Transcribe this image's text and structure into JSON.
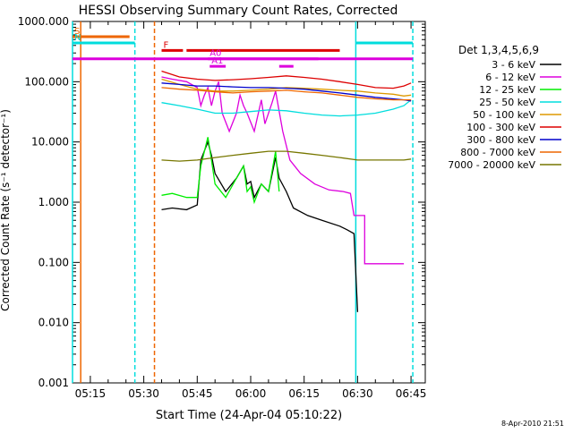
{
  "footer": {
    "generated": "8-Apr-2010 21:51"
  },
  "chart_data": {
    "type": "line",
    "title": "HESSI Observing Summary Count Rates, Corrected",
    "xlabel": "Start Time (24-Apr-04 05:10:22)",
    "ylabel": "Corrected Count Rate (s⁻¹ detector⁻¹)",
    "x_ticks": [
      "05:15",
      "05:30",
      "05:45",
      "06:00",
      "06:15",
      "06:30",
      "06:45"
    ],
    "x_tick_minutes": [
      5,
      20,
      35,
      50,
      65,
      80,
      95
    ],
    "xlim_minutes": [
      0,
      99
    ],
    "y_scale": "log",
    "ylim": [
      0.001,
      1000
    ],
    "y_ticks": [
      "0.001",
      "0.010",
      "0.100",
      "1.000",
      "10.000",
      "100.000",
      "1000.000"
    ],
    "legend": {
      "title": "Det 1,3,4,5,6,9",
      "placement": "right",
      "entries": [
        "3 - 6 keV",
        "6 - 12 keV",
        "12 - 25 keV",
        "25 - 50 keV",
        "50 - 100 keV",
        "100 - 300 keV",
        "300 - 800 keV",
        "800 - 7000 keV",
        "7000 - 20000 keV"
      ]
    },
    "series": [
      {
        "name": "3 - 6 keV",
        "color": "#000000",
        "points": [
          [
            25,
            0.75
          ],
          [
            28,
            0.8
          ],
          [
            32,
            0.75
          ],
          [
            35,
            0.9
          ],
          [
            36,
            5
          ],
          [
            38,
            10
          ],
          [
            39,
            6
          ],
          [
            40,
            3
          ],
          [
            43,
            1.5
          ],
          [
            46,
            2.5
          ],
          [
            48,
            4
          ],
          [
            49,
            2
          ],
          [
            50,
            2.2
          ],
          [
            51,
            1.2
          ],
          [
            53,
            2
          ],
          [
            55,
            1.5
          ],
          [
            57,
            5.5
          ],
          [
            58,
            2.5
          ],
          [
            60,
            1.5
          ],
          [
            62,
            0.8
          ],
          [
            66,
            0.6
          ],
          [
            70,
            0.5
          ],
          [
            75,
            0.4
          ],
          [
            77,
            0.35
          ],
          [
            79,
            0.3
          ],
          [
            80,
            0.015
          ]
        ]
      },
      {
        "name": "6 - 12 keV",
        "color": "#dd00dd",
        "points": [
          [
            25,
            120
          ],
          [
            28,
            110
          ],
          [
            32,
            100
          ],
          [
            35,
            80
          ],
          [
            36,
            40
          ],
          [
            37,
            60
          ],
          [
            38,
            80
          ],
          [
            39,
            40
          ],
          [
            40,
            70
          ],
          [
            41,
            100
          ],
          [
            42,
            30
          ],
          [
            44,
            15
          ],
          [
            46,
            30
          ],
          [
            47,
            60
          ],
          [
            48,
            40
          ],
          [
            49,
            30
          ],
          [
            51,
            15
          ],
          [
            53,
            50
          ],
          [
            54,
            20
          ],
          [
            56,
            45
          ],
          [
            57,
            70
          ],
          [
            59,
            15
          ],
          [
            61,
            5
          ],
          [
            64,
            3
          ],
          [
            68,
            2
          ],
          [
            72,
            1.6
          ],
          [
            76,
            1.5
          ],
          [
            78,
            1.4
          ],
          [
            79,
            0.6
          ],
          [
            82,
            0.6
          ],
          [
            82,
            0.095
          ],
          [
            93,
            0.095
          ]
        ]
      },
      {
        "name": "12 - 25 keV",
        "color": "#00ee00",
        "points": [
          [
            25,
            1.3
          ],
          [
            28,
            1.4
          ],
          [
            32,
            1.2
          ],
          [
            35,
            1.2
          ],
          [
            36,
            4
          ],
          [
            38,
            12
          ],
          [
            39,
            5
          ],
          [
            40,
            2
          ],
          [
            43,
            1.2
          ],
          [
            46,
            2.5
          ],
          [
            48,
            4
          ],
          [
            49,
            1.5
          ],
          [
            50,
            1.8
          ],
          [
            51,
            1.0
          ],
          [
            53,
            2
          ],
          [
            55,
            1.5
          ],
          [
            57,
            7
          ],
          [
            58,
            1.5
          ]
        ]
      },
      {
        "name": "25 - 50 keV",
        "color": "#00dddd",
        "points": [
          [
            25,
            45
          ],
          [
            30,
            40
          ],
          [
            35,
            35
          ],
          [
            40,
            30
          ],
          [
            45,
            30
          ],
          [
            50,
            32
          ],
          [
            55,
            34
          ],
          [
            60,
            33
          ],
          [
            65,
            30
          ],
          [
            70,
            28
          ],
          [
            75,
            27
          ],
          [
            80,
            28
          ],
          [
            85,
            30
          ],
          [
            90,
            35
          ],
          [
            93,
            40
          ],
          [
            95,
            50
          ]
        ]
      },
      {
        "name": "50 - 100 keV",
        "color": "#dd9900",
        "points": [
          [
            25,
            110
          ],
          [
            30,
            90
          ],
          [
            35,
            75
          ],
          [
            40,
            70
          ],
          [
            45,
            70
          ],
          [
            50,
            72
          ],
          [
            55,
            75
          ],
          [
            60,
            80
          ],
          [
            65,
            78
          ],
          [
            70,
            75
          ],
          [
            75,
            72
          ],
          [
            80,
            70
          ],
          [
            85,
            65
          ],
          [
            90,
            62
          ],
          [
            93,
            58
          ],
          [
            95,
            60
          ]
        ]
      },
      {
        "name": "100 - 300 keV",
        "color": "#dd0000",
        "points": [
          [
            25,
            150
          ],
          [
            30,
            120
          ],
          [
            35,
            110
          ],
          [
            40,
            105
          ],
          [
            45,
            108
          ],
          [
            50,
            112
          ],
          [
            55,
            118
          ],
          [
            60,
            125
          ],
          [
            65,
            118
          ],
          [
            70,
            110
          ],
          [
            75,
            100
          ],
          [
            80,
            90
          ],
          [
            85,
            80
          ],
          [
            90,
            78
          ],
          [
            93,
            85
          ],
          [
            95,
            95
          ]
        ]
      },
      {
        "name": "300 - 800 keV",
        "color": "#0000cc",
        "points": [
          [
            25,
            95
          ],
          [
            30,
            90
          ],
          [
            35,
            85
          ],
          [
            40,
            85
          ],
          [
            45,
            82
          ],
          [
            50,
            80
          ],
          [
            55,
            80
          ],
          [
            60,
            78
          ],
          [
            65,
            75
          ],
          [
            70,
            70
          ],
          [
            75,
            65
          ],
          [
            80,
            60
          ],
          [
            85,
            55
          ],
          [
            90,
            52
          ],
          [
            93,
            50
          ],
          [
            95,
            48
          ]
        ]
      },
      {
        "name": "800 - 7000 keV",
        "color": "#ee6600",
        "points": [
          [
            25,
            80
          ],
          [
            30,
            75
          ],
          [
            35,
            72
          ],
          [
            40,
            68
          ],
          [
            45,
            65
          ],
          [
            50,
            68
          ],
          [
            55,
            70
          ],
          [
            60,
            72
          ],
          [
            65,
            68
          ],
          [
            70,
            65
          ],
          [
            75,
            60
          ],
          [
            80,
            55
          ],
          [
            85,
            52
          ],
          [
            90,
            50
          ],
          [
            93,
            50
          ],
          [
            95,
            50
          ]
        ]
      },
      {
        "name": "7000 - 20000 keV",
        "color": "#777700",
        "points": [
          [
            25,
            5
          ],
          [
            30,
            4.8
          ],
          [
            35,
            5
          ],
          [
            40,
            5.5
          ],
          [
            45,
            6
          ],
          [
            50,
            6.5
          ],
          [
            55,
            7
          ],
          [
            60,
            7
          ],
          [
            65,
            6.5
          ],
          [
            70,
            6
          ],
          [
            75,
            5.5
          ],
          [
            80,
            5
          ],
          [
            85,
            5
          ],
          [
            90,
            5
          ],
          [
            93,
            5
          ],
          [
            95,
            5.2
          ]
        ]
      }
    ],
    "flags": [
      {
        "label": "S",
        "color": "#ee6600",
        "start": 0,
        "end": 16,
        "level": 560
      },
      {
        "label": "N",
        "color": "#00dddd",
        "start": 0,
        "end": 17.5,
        "level": 440
      },
      {
        "label": "",
        "color": "#00dddd",
        "start": 79.5,
        "end": 95.5,
        "level": 440
      },
      {
        "label": "F",
        "color": "#dd0000",
        "start": 25,
        "end": 31,
        "level": 330
      },
      {
        "label": "",
        "color": "#dd0000",
        "start": 32,
        "end": 75,
        "level": 330
      },
      {
        "label": "",
        "color": "#dd00dd",
        "start": 0,
        "end": 95.5,
        "level": 240
      },
      {
        "label": "A0",
        "color": "#dd00dd",
        "start": 38,
        "end": 69,
        "level": 240
      },
      {
        "label": "A1",
        "color": "#dd00dd",
        "start": 38.5,
        "end": 43,
        "level": 180
      },
      {
        "label": "",
        "color": "#dd00dd",
        "start": 58,
        "end": 62,
        "level": 180
      }
    ],
    "vertical_markers": [
      {
        "minute": 0.0,
        "color": "#00dddd",
        "style": "solid"
      },
      {
        "minute": 2.3,
        "color": "#ee6600",
        "style": "solid"
      },
      {
        "minute": 17.5,
        "color": "#00dddd",
        "style": "dashed"
      },
      {
        "minute": 23.0,
        "color": "#ee6600",
        "style": "dashed"
      },
      {
        "minute": 79.5,
        "color": "#00dddd",
        "style": "solid"
      },
      {
        "minute": 95.5,
        "color": "#00dddd",
        "style": "dashed"
      }
    ]
  }
}
